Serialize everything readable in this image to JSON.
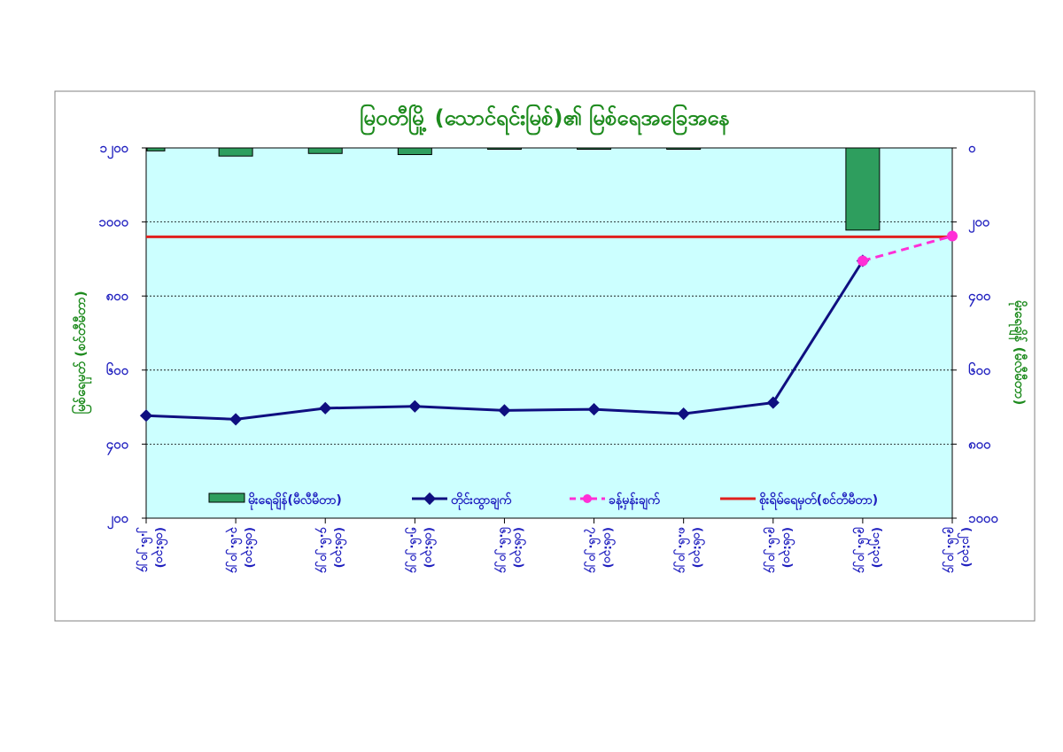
{
  "chart_data": {
    "type": "line",
    "title": "မြဝတီမြို့ (သောင်ရင်းမြစ်)၏ မြစ်ရေအခြေအနေ",
    "ylabel_left": "မြစ်ရေမှတ် (စင်တီမီတာ)",
    "ylabel_right": "မိုးရေချိန် (မီလီမီတာ)",
    "y_left_range": [
      200,
      1200
    ],
    "y_left_ticks": [
      "၂၀၀",
      "၄၀၀",
      "၆၀၀",
      "၈၀၀",
      "၁၀၀၀",
      "၁၂၀၀"
    ],
    "y_left_tick_values": [
      200,
      400,
      600,
      800,
      1000,
      1200
    ],
    "y_right_range": [
      0,
      1000
    ],
    "y_right_ticks": [
      "၀",
      "၂၀၀",
      "၄၀၀",
      "၆၀၀",
      "၈၀၀",
      "၁၀၀၀"
    ],
    "y_right_tick_values": [
      0,
      200,
      400,
      600,
      800,
      1000
    ],
    "categories": [
      [
        "၂.၆.၂၀၂၄",
        "(၀၆:၃၀)"
      ],
      [
        "၃.၆.၂၀၂၄",
        "(၀၆:၃၀)"
      ],
      [
        "၄.၆.၂၀၂၄",
        "(၀၆:၃၀)"
      ],
      [
        "၅.၆.၂၀၂၄",
        "(၀၆:၃၀)"
      ],
      [
        "၆.၆.၂၀၂၄",
        "(၀၆:၃၀)"
      ],
      [
        "၇.၆.၂၀၂၄",
        "(၀၆:၃၀)"
      ],
      [
        "၈.၆.၂၀၂၄",
        "(၀၆:၃၀)"
      ],
      [
        "၉.၆.၂၀၂၄",
        "(၀၆:၃၀)"
      ],
      [
        "၉.၆.၂၀၂၄",
        "(၁၅:၃၀)"
      ],
      [
        "၉.၆.၂၀၂၄",
        "(၂၁:၃၀)"
      ]
    ],
    "series": [
      {
        "name": "မိုးရေချိန်(မီလီမီတာ)",
        "kind": "bar",
        "axis": "right",
        "color": "#2e9e5e",
        "values": [
          8,
          22,
          15,
          18,
          2,
          1,
          2,
          null,
          222,
          null
        ]
      },
      {
        "name": "တိုင်းထွာချက်",
        "kind": "line",
        "axis": "left",
        "color": "#0f0f80",
        "values": [
          477,
          467,
          497,
          502,
          491,
          494,
          482,
          512,
          895,
          null
        ]
      },
      {
        "name": "ခန့်မှန်းချက်",
        "kind": "line-dashed",
        "axis": "left",
        "color": "#ff2fd6",
        "values": [
          null,
          null,
          null,
          null,
          null,
          null,
          null,
          null,
          895,
          962
        ]
      },
      {
        "name": "စိုးရိမ်ရေမှတ်(စင်တီမီတာ)",
        "kind": "hline",
        "axis": "left",
        "color": "#e0201e",
        "value": 960
      }
    ],
    "grid": true,
    "legend_position": "bottom-inside"
  },
  "colors": {
    "plot_background": "#ccffff",
    "title": "#1e8b1e",
    "tick_text": "#1f1fbf"
  }
}
